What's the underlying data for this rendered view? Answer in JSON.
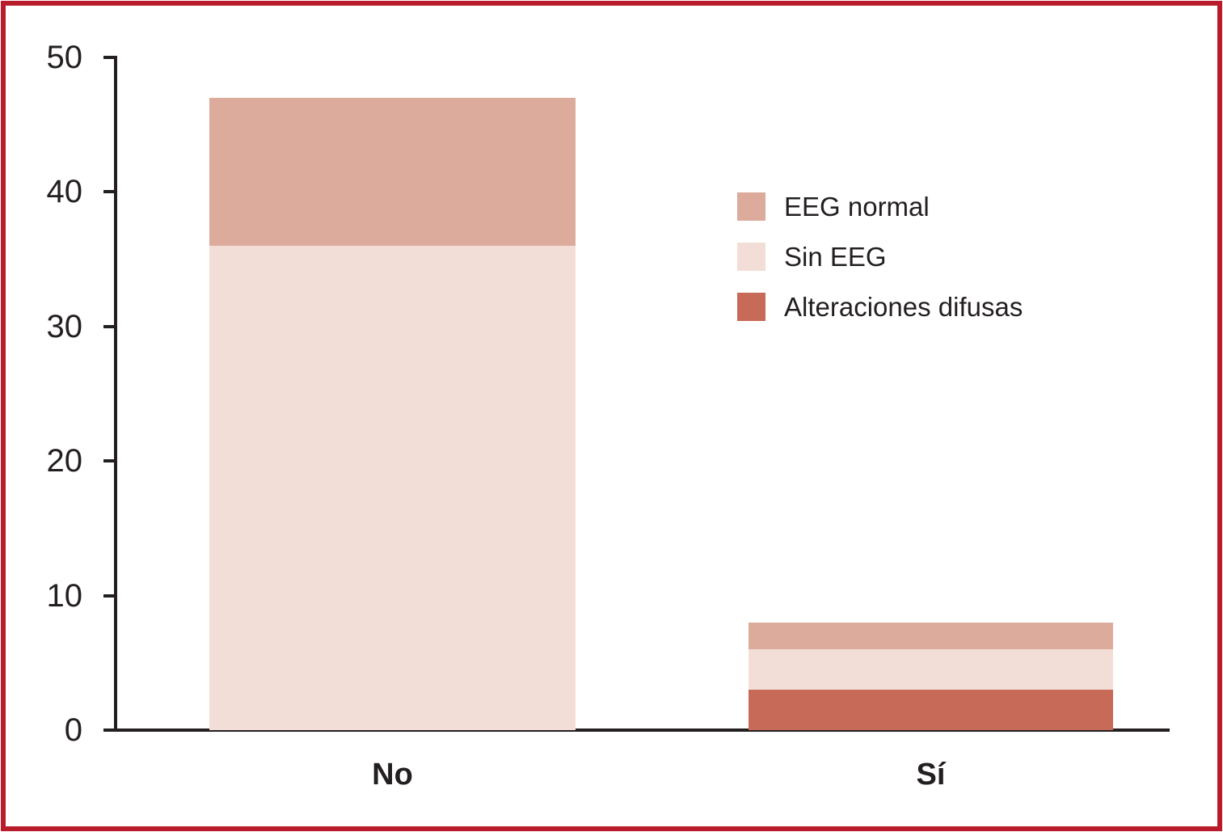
{
  "figure": {
    "frame_color": "#b81c2b",
    "background_color": "#ffffff",
    "axis_color": "#231f20",
    "text_color": "#231f20"
  },
  "chart_data": {
    "type": "bar",
    "subtype": "stacked-vertical",
    "title": "",
    "xlabel": "",
    "ylabel": "",
    "categories": [
      "No",
      "Sí"
    ],
    "series": [
      {
        "name": "Alteraciones difusas",
        "color": "#c86a58",
        "values": [
          0,
          3
        ]
      },
      {
        "name": "Sin EEG",
        "color": "#f3ded7",
        "values": [
          36,
          3
        ]
      },
      {
        "name": "EEG normal",
        "color": "#dcab9b",
        "values": [
          11,
          2
        ]
      }
    ],
    "series_order_note": "series listed bottom-to-top of stack",
    "stack_totals": [
      47,
      8
    ],
    "ylim": [
      0,
      50
    ],
    "y_ticks": [
      0,
      10,
      20,
      30,
      40,
      50
    ],
    "grid": "off",
    "legend": {
      "position": "upper-right",
      "items": [
        {
          "label": "EEG normal",
          "color": "#dcab9b"
        },
        {
          "label": "Sin EEG",
          "color": "#f3ded7"
        },
        {
          "label": "Alteraciones difusas",
          "color": "#c86a58"
        }
      ]
    }
  }
}
